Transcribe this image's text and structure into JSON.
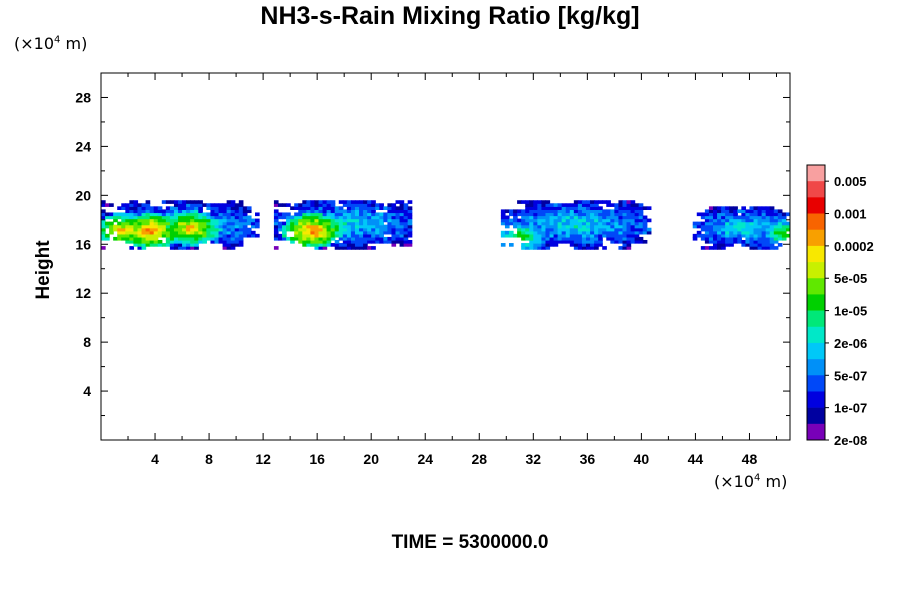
{
  "chart_data": {
    "type": "heatmap",
    "title": "NH3-s-Rain Mixing Ratio [kg/kg]",
    "ylabel": "Height",
    "x_unit_prefix": "(×10",
    "x_unit_exp": "4",
    "x_unit_suffix": " m)",
    "y_unit_prefix": "(×10",
    "y_unit_exp": "4",
    "y_unit_suffix": " m)",
    "xlim": [
      0,
      51
    ],
    "ylim": [
      0,
      30
    ],
    "x_ticks": [
      4,
      8,
      12,
      16,
      20,
      24,
      28,
      32,
      36,
      40,
      44,
      48
    ],
    "y_ticks": [
      4,
      8,
      12,
      16,
      20,
      24,
      28
    ],
    "time_label": "TIME = 5300000.0",
    "colorbar": {
      "colors": [
        "#f8a0a0",
        "#f04848",
        "#e80000",
        "#f86400",
        "#f8a000",
        "#f8e800",
        "#c8f000",
        "#60e800",
        "#00d000",
        "#00e878",
        "#00e8c8",
        "#00c8f8",
        "#0090f8",
        "#0048f8",
        "#0000e0",
        "#0000a0",
        "#7800b8"
      ],
      "labels": [
        "0.005",
        "0.001",
        "0.0002",
        "5e-05",
        "1e-05",
        "2e-06",
        "5e-07",
        "1e-07",
        "2e-08"
      ]
    },
    "regions": [
      {
        "x": [
          0,
          11.5
        ],
        "y": [
          15.6,
          19.4
        ],
        "peak": 13
      },
      {
        "x": [
          12.8,
          22.8
        ],
        "y": [
          15.6,
          19.6
        ],
        "peak": 13
      },
      {
        "x": [
          29.6,
          40.5
        ],
        "y": [
          15.6,
          19.5
        ],
        "peak": 9
      },
      {
        "x": [
          43.8,
          51
        ],
        "y": [
          15.6,
          19.0
        ],
        "peak": 9
      }
    ],
    "cores": [
      {
        "x": 1.5,
        "y": 17.0,
        "level": 12
      },
      {
        "x": 3.5,
        "y": 17.0,
        "level": 13
      },
      {
        "x": 6.5,
        "y": 17.2,
        "level": 12
      },
      {
        "x": 15.5,
        "y": 17.0,
        "level": 13
      },
      {
        "x": 31.0,
        "y": 16.5,
        "level": 9
      },
      {
        "x": 50.5,
        "y": 16.8,
        "level": 9
      }
    ]
  }
}
